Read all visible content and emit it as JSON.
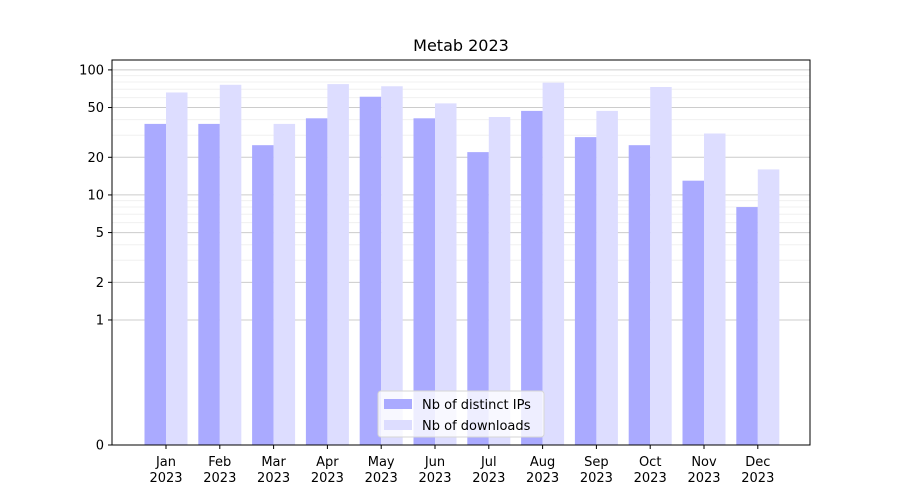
{
  "chart_data": {
    "type": "bar",
    "title": "Metab 2023",
    "xlabel": "",
    "ylabel": "",
    "y_scale": "symlog",
    "ylim": [
      0,
      120
    ],
    "y_ticks": [
      0,
      1,
      2,
      5,
      10,
      20,
      50,
      100
    ],
    "grid": "y",
    "legend_position": "bottom-center",
    "categories": [
      [
        "Jan",
        "2023"
      ],
      [
        "Feb",
        "2023"
      ],
      [
        "Mar",
        "2023"
      ],
      [
        "Apr",
        "2023"
      ],
      [
        "May",
        "2023"
      ],
      [
        "Jun",
        "2023"
      ],
      [
        "Jul",
        "2023"
      ],
      [
        "Aug",
        "2023"
      ],
      [
        "Sep",
        "2023"
      ],
      [
        "Oct",
        "2023"
      ],
      [
        "Nov",
        "2023"
      ],
      [
        "Dec",
        "2023"
      ]
    ],
    "series": [
      {
        "name": "Nb of distinct IPs",
        "color": "#aaaaff",
        "values": [
          37,
          37,
          25,
          41,
          61,
          41,
          22,
          47,
          29,
          25,
          13,
          8
        ]
      },
      {
        "name": "Nb of downloads",
        "color": "#ddddff",
        "values": [
          66,
          76,
          37,
          77,
          74,
          54,
          42,
          79,
          47,
          73,
          31,
          16
        ]
      }
    ]
  }
}
